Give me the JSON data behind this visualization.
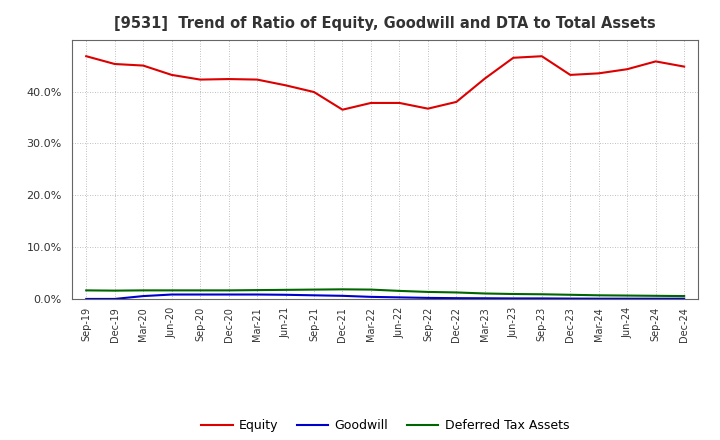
{
  "title": "[9531]  Trend of Ratio of Equity, Goodwill and DTA to Total Assets",
  "x_labels": [
    "Sep-19",
    "Dec-19",
    "Mar-20",
    "Jun-20",
    "Sep-20",
    "Dec-20",
    "Mar-21",
    "Jun-21",
    "Sep-21",
    "Dec-21",
    "Mar-22",
    "Jun-22",
    "Sep-22",
    "Dec-22",
    "Mar-23",
    "Jun-23",
    "Sep-23",
    "Dec-23",
    "Mar-24",
    "Jun-24",
    "Sep-24",
    "Dec-24"
  ],
  "equity": [
    46.8,
    45.3,
    45.0,
    43.2,
    42.3,
    42.4,
    42.3,
    41.2,
    39.9,
    36.5,
    37.8,
    37.8,
    36.7,
    38.0,
    42.5,
    46.5,
    46.8,
    43.2,
    43.5,
    44.3,
    45.8,
    44.8
  ],
  "goodwill": [
    0.05,
    0.05,
    0.6,
    0.9,
    0.9,
    0.9,
    0.9,
    0.85,
    0.75,
    0.65,
    0.45,
    0.35,
    0.25,
    0.2,
    0.18,
    0.15,
    0.15,
    0.12,
    0.1,
    0.1,
    0.1,
    0.1
  ],
  "dta": [
    1.7,
    1.65,
    1.7,
    1.7,
    1.7,
    1.7,
    1.75,
    1.8,
    1.85,
    1.9,
    1.85,
    1.6,
    1.4,
    1.3,
    1.1,
    1.0,
    0.95,
    0.85,
    0.75,
    0.7,
    0.65,
    0.6
  ],
  "equity_color": "#dd0000",
  "goodwill_color": "#0000cc",
  "dta_color": "#006600",
  "background_color": "#ffffff",
  "grid_color": "#aaaaaa",
  "ylim": [
    0,
    50
  ],
  "yticks": [
    0,
    10,
    20,
    30,
    40
  ],
  "legend_labels": [
    "Equity",
    "Goodwill",
    "Deferred Tax Assets"
  ]
}
